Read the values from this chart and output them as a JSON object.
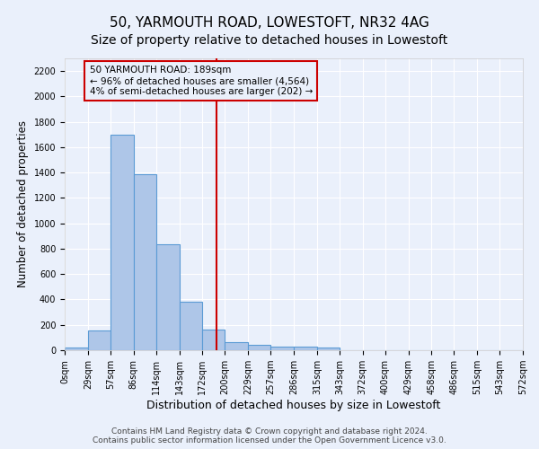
{
  "title": "50, YARMOUTH ROAD, LOWESTOFT, NR32 4AG",
  "subtitle": "Size of property relative to detached houses in Lowestoft",
  "xlabel": "Distribution of detached houses by size in Lowestoft",
  "ylabel": "Number of detached properties",
  "bar_values": [
    20,
    155,
    1700,
    1390,
    835,
    385,
    160,
    65,
    40,
    30,
    30,
    18,
    0,
    0,
    0,
    0,
    0,
    0,
    0,
    0
  ],
  "bar_edges": [
    0,
    29,
    57,
    86,
    114,
    143,
    172,
    200,
    229,
    257,
    286,
    315,
    343,
    372,
    400,
    429,
    458,
    486,
    515,
    543,
    572
  ],
  "tick_labels": [
    "0sqm",
    "29sqm",
    "57sqm",
    "86sqm",
    "114sqm",
    "143sqm",
    "172sqm",
    "200sqm",
    "229sqm",
    "257sqm",
    "286sqm",
    "315sqm",
    "343sqm",
    "372sqm",
    "400sqm",
    "429sqm",
    "458sqm",
    "486sqm",
    "515sqm",
    "543sqm",
    "572sqm"
  ],
  "bar_color": "#aec6e8",
  "bar_edge_color": "#5b9bd5",
  "bar_linewidth": 0.8,
  "vline_x": 189,
  "vline_color": "#cc0000",
  "annotation_text": "50 YARMOUTH ROAD: 189sqm\n← 96% of detached houses are smaller (4,564)\n4% of semi-detached houses are larger (202) →",
  "annotation_box_color": "#cc0000",
  "ylim": [
    0,
    2300
  ],
  "yticks": [
    0,
    200,
    400,
    600,
    800,
    1000,
    1200,
    1400,
    1600,
    1800,
    2000,
    2200
  ],
  "bg_color": "#eaf0fb",
  "grid_color": "#ffffff",
  "footer_line1": "Contains HM Land Registry data © Crown copyright and database right 2024.",
  "footer_line2": "Contains public sector information licensed under the Open Government Licence v3.0.",
  "title_fontsize": 11,
  "subtitle_fontsize": 10,
  "axis_label_fontsize": 8.5,
  "tick_fontsize": 7,
  "footer_fontsize": 6.5,
  "ann_fontsize": 7.5
}
